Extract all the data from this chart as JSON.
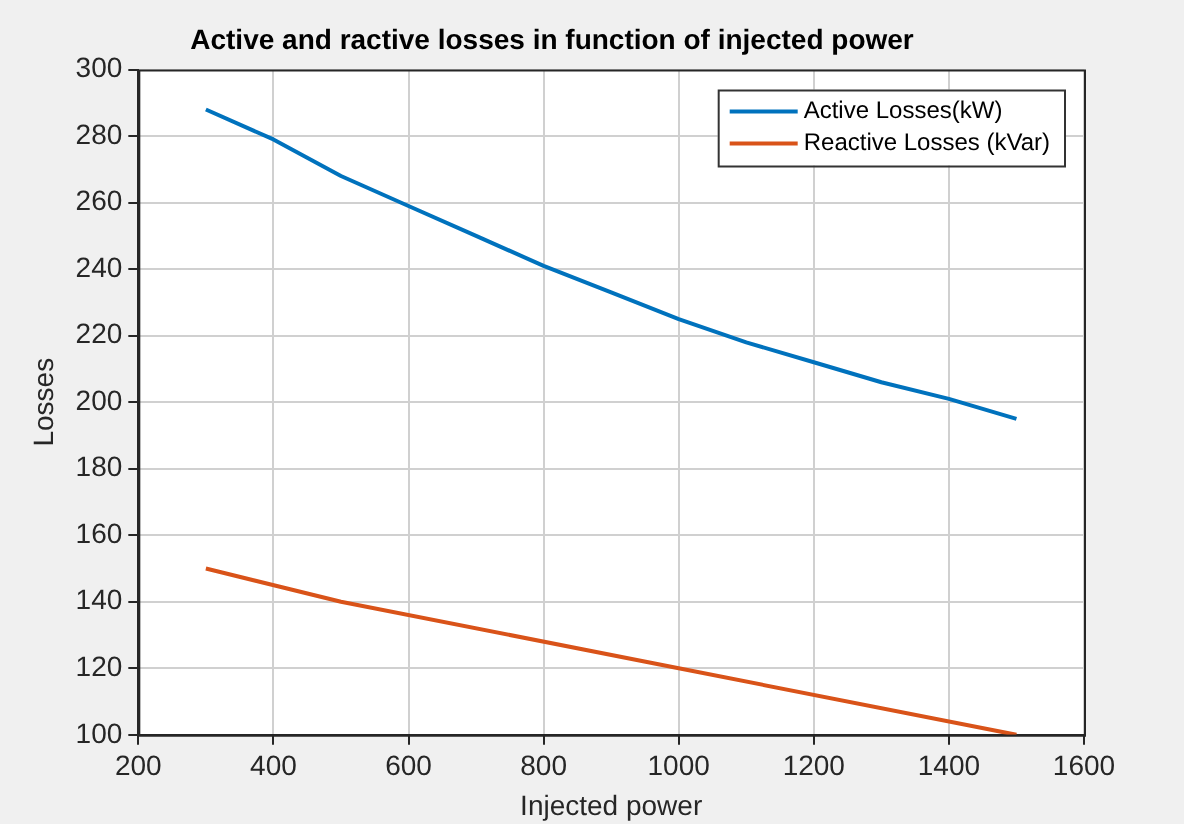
{
  "chart_data": {
    "type": "line",
    "title": "Active and ractive losses in function of injected power",
    "xlabel": "Injected power",
    "ylabel": "Losses",
    "x": [
      300,
      400,
      500,
      600,
      700,
      800,
      900,
      1000,
      1100,
      1200,
      1300,
      1400,
      1500
    ],
    "series": [
      {
        "name": "Active Losses(kW)",
        "color": "#0072bd",
        "values": [
          288,
          279,
          268,
          259,
          250,
          241,
          233,
          225,
          218,
          212,
          206,
          201,
          195
        ]
      },
      {
        "name": "Reactive Losses (kVar)",
        "color": "#d95319",
        "x": [
          300,
          500,
          1000,
          1500
        ],
        "values": [
          150,
          140,
          120,
          100
        ]
      }
    ],
    "xlim": [
      200,
      1600
    ],
    "xticks": [
      200,
      400,
      600,
      800,
      1000,
      1200,
      1400,
      1600
    ],
    "ylim": [
      100,
      300
    ],
    "yticks": [
      100,
      120,
      140,
      160,
      180,
      200,
      220,
      240,
      260,
      280,
      300
    ],
    "grid": true,
    "legend": "top right",
    "marker": "none",
    "line_style": "solid"
  }
}
